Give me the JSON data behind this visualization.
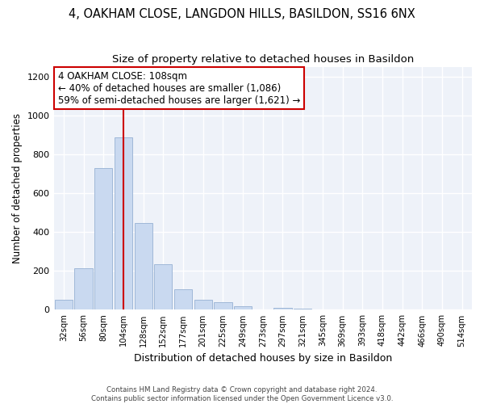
{
  "title_line1": "4, OAKHAM CLOSE, LANGDON HILLS, BASILDON, SS16 6NX",
  "title_line2": "Size of property relative to detached houses in Basildon",
  "xlabel": "Distribution of detached houses by size in Basildon",
  "ylabel": "Number of detached properties",
  "footer": "Contains HM Land Registry data © Crown copyright and database right 2024.\nContains public sector information licensed under the Open Government Licence v3.0.",
  "categories": [
    "32sqm",
    "56sqm",
    "80sqm",
    "104sqm",
    "128sqm",
    "152sqm",
    "177sqm",
    "201sqm",
    "225sqm",
    "249sqm",
    "273sqm",
    "297sqm",
    "321sqm",
    "345sqm",
    "369sqm",
    "393sqm",
    "418sqm",
    "442sqm",
    "466sqm",
    "490sqm",
    "514sqm"
  ],
  "values": [
    50,
    215,
    730,
    890,
    445,
    235,
    105,
    50,
    40,
    20,
    0,
    10,
    5,
    0,
    0,
    0,
    0,
    0,
    0,
    0,
    0
  ],
  "bar_color": "#c9d9f0",
  "bar_edge_color": "#a0b8d8",
  "vline_x": 3,
  "vline_color": "#cc0000",
  "annotation_text": "4 OAKHAM CLOSE: 108sqm\n← 40% of detached houses are smaller (1,086)\n59% of semi-detached houses are larger (1,621) →",
  "annotation_box_color": "#ffffff",
  "annotation_box_edge": "#cc0000",
  "ylim": [
    0,
    1250
  ],
  "yticks": [
    0,
    200,
    400,
    600,
    800,
    1000,
    1200
  ],
  "bg_color": "#eef2f9",
  "grid_color": "#ffffff",
  "fig_bg_color": "#ffffff",
  "title1_fontsize": 10.5,
  "title2_fontsize": 9.5,
  "xlabel_fontsize": 9,
  "ylabel_fontsize": 8.5,
  "annot_fontsize": 8.5
}
